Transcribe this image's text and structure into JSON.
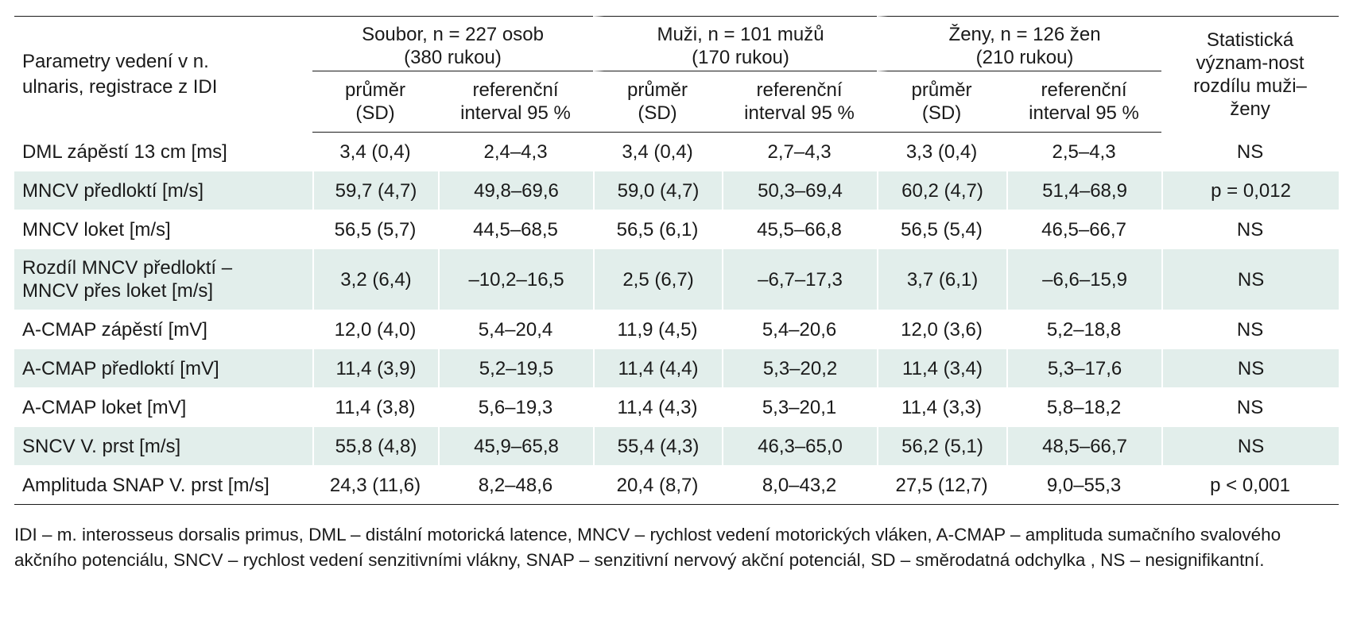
{
  "header": {
    "param_label": "Parametry vedení v n. ulnaris, registrace z IDI",
    "groups": [
      {
        "line1": "Soubor, n = 227 osob",
        "line2": "(380 rukou)"
      },
      {
        "line1": "Muži, n = 101 mužů",
        "line2": "(170 rukou)"
      },
      {
        "line1": "Ženy, n = 126 žen",
        "line2": "(210 rukou)"
      }
    ],
    "stat_label": "Statistická význam-nost rozdílu muži–ženy",
    "sub": {
      "mean": "průměr (SD)",
      "ref": "referenční interval 95 %"
    }
  },
  "rows": [
    {
      "param": "DML zápěstí 13 cm [ms]",
      "values": [
        "3,4 (0,4)",
        "2,4–4,3",
        "3,4 (0,4)",
        "2,7–4,3",
        "3,3 (0,4)",
        "2,5–4,3"
      ],
      "sig": "NS"
    },
    {
      "param": "MNCV předloktí [m/s]",
      "values": [
        "59,7 (4,7)",
        "49,8–69,6",
        "59,0 (4,7)",
        "50,3–69,4",
        "60,2 (4,7)",
        "51,4–68,9"
      ],
      "sig": "p = 0,012"
    },
    {
      "param": "MNCV loket [m/s]",
      "values": [
        "56,5 (5,7)",
        "44,5–68,5",
        "56,5 (6,1)",
        "45,5–66,8",
        "56,5 (5,4)",
        "46,5–66,7"
      ],
      "sig": "NS"
    },
    {
      "param": "Rozdíl MNCV předloktí – MNCV přes loket [m/s]",
      "values": [
        "3,2 (6,4)",
        "–10,2–16,5",
        "2,5 (6,7)",
        "–6,7–17,3",
        "3,7 (6,1)",
        "–6,6–15,9"
      ],
      "sig": "NS"
    },
    {
      "param": "A-CMAP zápěstí [mV]",
      "values": [
        "12,0 (4,0)",
        "5,4–20,4",
        "11,9 (4,5)",
        "5,4–20,6",
        "12,0 (3,6)",
        "5,2–18,8"
      ],
      "sig": "NS"
    },
    {
      "param": "A-CMAP předloktí [mV]",
      "values": [
        "11,4 (3,9)",
        "5,2–19,5",
        "11,4 (4,4)",
        "5,3–20,2",
        "11,4 (3,4)",
        "5,3–17,6"
      ],
      "sig": "NS"
    },
    {
      "param": "A-CMAP loket [mV]",
      "values": [
        "11,4 (3,8)",
        "5,6–19,3",
        "11,4 (4,3)",
        "5,3–20,1",
        "11,4 (3,3)",
        "5,8–18,2"
      ],
      "sig": "NS"
    },
    {
      "param": "SNCV V. prst [m/s]",
      "values": [
        "55,8 (4,8)",
        "45,9–65,8",
        "55,4 (4,3)",
        "46,3–65,0",
        "56,2 (5,1)",
        "48,5–66,7"
      ],
      "sig": "NS"
    },
    {
      "param": "Amplituda SNAP V. prst [m/s]",
      "values": [
        "24,3 (11,6)",
        "8,2–48,6",
        "20,4 (8,7)",
        "8,0–43,2",
        "27,5 (12,7)",
        "9,0–55,3"
      ],
      "sig": "p < 0,001"
    }
  ],
  "footnote": "IDI – m. interosseus dorsalis primus, DML – distální motorická latence, MNCV – rychlost vedení motorických vláken, A-CMAP – amplituda sumačního svalového akčního potenciálu, SNCV – rychlost vedení senzitivními vlákny, SNAP – senzitivní nervový akční potenciál, SD – směrodatná odchylka , NS – nesignifikantní.",
  "colors": {
    "row_shade": "#e2eeeb",
    "rule": "#1a1a1a",
    "text": "#1a1a1a"
  }
}
